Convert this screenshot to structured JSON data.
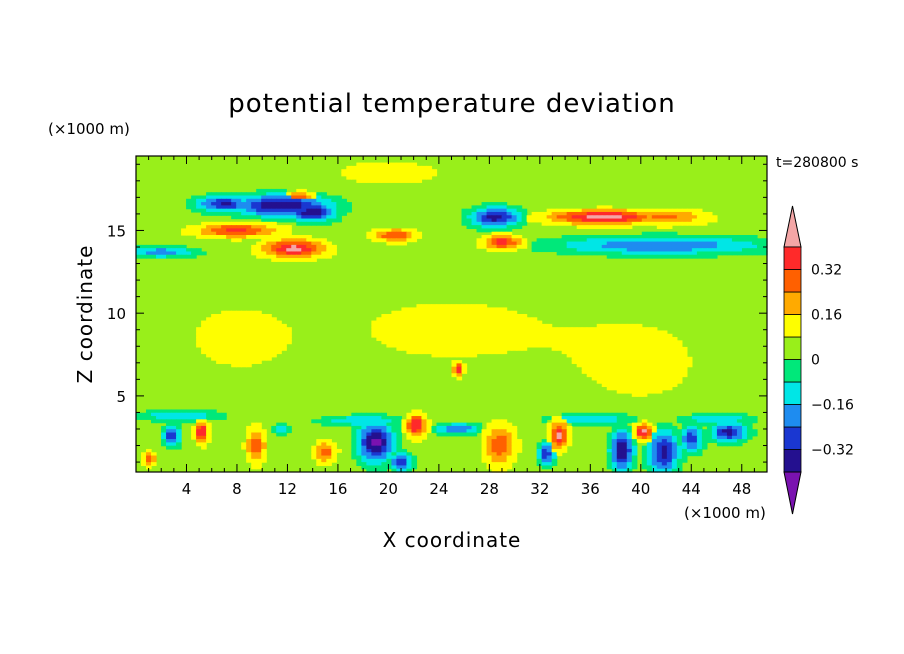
{
  "chart_data": {
    "type": "heatmap",
    "title": "potential temperature deviation",
    "xlabel": "X coordinate",
    "ylabel": "Z coordinate",
    "x_unit": "(×1000 m)",
    "y_unit": "(×1000 m)",
    "time_label": "t=280800 s",
    "xlim": [
      0,
      50
    ],
    "ylim": [
      0.4,
      19.5
    ],
    "x_ticks": [
      4,
      8,
      12,
      16,
      20,
      24,
      28,
      32,
      36,
      40,
      44,
      48
    ],
    "y_ticks": [
      5,
      10,
      15
    ],
    "grid": false,
    "colorbar": {
      "placement": "right",
      "levels": [
        -0.4,
        -0.32,
        -0.24,
        -0.16,
        -0.08,
        0,
        0.08,
        0.16,
        0.24,
        0.32,
        0.4
      ],
      "tick_labels": [
        {
          "value": 0.32,
          "label": "0.32"
        },
        {
          "value": 0.16,
          "label": "0.16"
        },
        {
          "value": 0,
          "label": "0"
        },
        {
          "value": -0.16,
          "label": "−0.16"
        },
        {
          "value": -0.32,
          "label": "−0.32"
        }
      ],
      "colors": [
        "#7a12b0",
        "#24108f",
        "#1a37d1",
        "#1e8cf0",
        "#00e6e6",
        "#00e87a",
        "#99ef1a",
        "#fefe00",
        "#ffaa00",
        "#ff6000",
        "#ff2a2a",
        "#f4a6a6"
      ]
    },
    "background_value": 0.04,
    "features": [
      {
        "x": 11.5,
        "z": 16.5,
        "rx": 3.5,
        "rz": 0.6,
        "value": -0.4
      },
      {
        "x": 7.0,
        "z": 16.6,
        "rx": 2.0,
        "rz": 0.45,
        "value": -0.33
      },
      {
        "x": 14.0,
        "z": 16.1,
        "rx": 1.6,
        "rz": 0.5,
        "value": -0.4
      },
      {
        "x": 8.0,
        "z": 15.0,
        "rx": 3.5,
        "rz": 0.45,
        "value": 0.34
      },
      {
        "x": 12.5,
        "z": 13.9,
        "rx": 2.5,
        "rz": 0.6,
        "value": 0.42
      },
      {
        "x": 13.0,
        "z": 17.0,
        "rx": 1.2,
        "rz": 0.35,
        "value": 0.3
      },
      {
        "x": 2.0,
        "z": 13.7,
        "rx": 2.5,
        "rz": 0.3,
        "value": -0.2
      },
      {
        "x": 20.5,
        "z": 14.7,
        "rx": 1.8,
        "rz": 0.4,
        "value": 0.32
      },
      {
        "x": 28.5,
        "z": 15.8,
        "rx": 1.8,
        "rz": 0.55,
        "value": -0.36
      },
      {
        "x": 29.0,
        "z": 14.3,
        "rx": 1.6,
        "rz": 0.45,
        "value": 0.36
      },
      {
        "x": 37.0,
        "z": 15.8,
        "rx": 4.5,
        "rz": 0.45,
        "value": 0.44
      },
      {
        "x": 42.0,
        "z": 15.8,
        "rx": 3.5,
        "rz": 0.5,
        "value": 0.26
      },
      {
        "x": 41.5,
        "z": 14.1,
        "rx": 7.5,
        "rz": 0.5,
        "value": -0.24
      },
      {
        "x": 25.5,
        "z": 6.6,
        "rx": 0.4,
        "rz": 0.4,
        "value": 0.4
      },
      {
        "x": 5.2,
        "z": 2.8,
        "rx": 0.5,
        "rz": 0.7,
        "value": 0.42
      },
      {
        "x": 2.8,
        "z": 2.6,
        "rx": 0.6,
        "rz": 0.6,
        "value": -0.3
      },
      {
        "x": 9.5,
        "z": 2.0,
        "rx": 0.8,
        "rz": 1.1,
        "value": 0.3
      },
      {
        "x": 11.5,
        "z": 3.0,
        "rx": 0.5,
        "rz": 0.3,
        "value": -0.2
      },
      {
        "x": 15.0,
        "z": 1.6,
        "rx": 0.9,
        "rz": 0.7,
        "value": 0.28
      },
      {
        "x": 19.0,
        "z": 2.2,
        "rx": 1.3,
        "rz": 1.1,
        "value": -0.42
      },
      {
        "x": 21.0,
        "z": 1.0,
        "rx": 0.7,
        "rz": 0.5,
        "value": -0.35
      },
      {
        "x": 22.2,
        "z": 3.2,
        "rx": 0.8,
        "rz": 0.7,
        "value": 0.42
      },
      {
        "x": 25.5,
        "z": 3.0,
        "rx": 1.6,
        "rz": 0.3,
        "value": -0.24
      },
      {
        "x": 28.8,
        "z": 2.0,
        "rx": 1.3,
        "rz": 1.3,
        "value": 0.3
      },
      {
        "x": 33.5,
        "z": 2.6,
        "rx": 0.7,
        "rz": 0.9,
        "value": 0.42
      },
      {
        "x": 32.5,
        "z": 1.5,
        "rx": 0.6,
        "rz": 0.6,
        "value": -0.3
      },
      {
        "x": 38.5,
        "z": 1.7,
        "rx": 0.8,
        "rz": 1.1,
        "value": -0.42
      },
      {
        "x": 40.2,
        "z": 2.8,
        "rx": 0.7,
        "rz": 0.5,
        "value": 0.42
      },
      {
        "x": 41.8,
        "z": 1.6,
        "rx": 1.1,
        "rz": 1.2,
        "value": -0.35
      },
      {
        "x": 44.0,
        "z": 2.4,
        "rx": 0.8,
        "rz": 0.7,
        "value": -0.3
      },
      {
        "x": 47.0,
        "z": 2.8,
        "rx": 1.3,
        "rz": 0.5,
        "value": -0.36
      },
      {
        "x": 1.0,
        "z": 1.2,
        "rx": 0.6,
        "rz": 0.5,
        "value": 0.26
      },
      {
        "x": 3.5,
        "z": 3.8,
        "rx": 3.0,
        "rz": 0.3,
        "value": -0.16
      },
      {
        "x": 18.0,
        "z": 3.5,
        "rx": 3.0,
        "rz": 0.3,
        "value": -0.16
      },
      {
        "x": 36.0,
        "z": 3.6,
        "rx": 3.0,
        "rz": 0.35,
        "value": -0.16
      },
      {
        "x": 46.0,
        "z": 3.6,
        "rx": 2.5,
        "rz": 0.3,
        "value": -0.16
      },
      {
        "x": 25.0,
        "z": 9.0,
        "rx": 10.0,
        "rz": 2.5,
        "value": 0.1
      },
      {
        "x": 40.0,
        "z": 7.0,
        "rx": 6.0,
        "rz": 3.0,
        "value": 0.1
      },
      {
        "x": 8.0,
        "z": 8.5,
        "rx": 5.0,
        "rz": 2.5,
        "value": 0.1
      },
      {
        "x": 20.0,
        "z": 18.5,
        "rx": 6.0,
        "rz": 1.0,
        "value": 0.1
      }
    ]
  }
}
